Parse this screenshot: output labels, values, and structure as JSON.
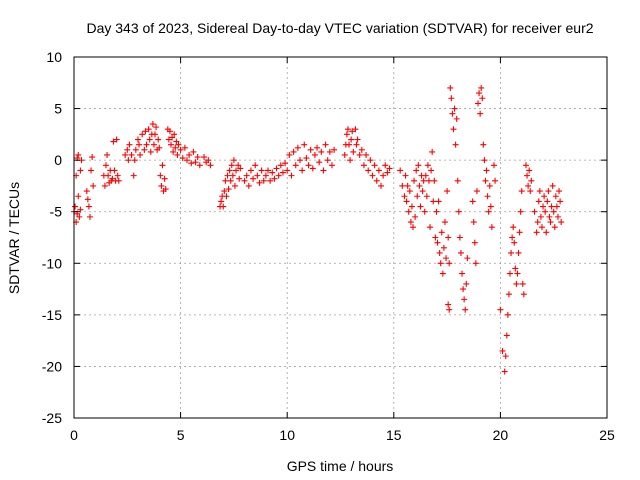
{
  "chart_data": {
    "type": "scatter",
    "title": "Day 343 of 2023, Sidereal Day-to-day VTEC variation (SDTVAR) for receiver eur2",
    "xlabel": "GPS time / hours",
    "ylabel": "SDTVAR / TECUs",
    "xlim": [
      0,
      25
    ],
    "ylim": [
      -25,
      10
    ],
    "xticks": [
      0,
      5,
      10,
      15,
      20,
      25
    ],
    "yticks": [
      10,
      5,
      0,
      -5,
      -10,
      -15,
      -20,
      -25
    ],
    "xtick_labels": [
      "0",
      "5",
      "10",
      "15",
      "20",
      "25"
    ],
    "ytick_labels": [
      "10",
      "5",
      "0",
      "-5",
      "-10",
      "-15",
      "-20",
      "-25"
    ],
    "grid": true,
    "marker": "+",
    "series": [
      {
        "name": "SDTVAR",
        "color": "#ff0000",
        "points": [
          [
            0.0,
            -5.0
          ],
          [
            0.05,
            -4.5
          ],
          [
            0.1,
            -1.5
          ],
          [
            0.1,
            -6.0
          ],
          [
            0.15,
            0.2
          ],
          [
            0.15,
            -5.2
          ],
          [
            0.2,
            -3.5
          ],
          [
            0.2,
            0.5
          ],
          [
            0.25,
            -5.5
          ],
          [
            0.3,
            -1.0
          ],
          [
            0.3,
            -4.8
          ],
          [
            0.35,
            0.0
          ],
          [
            0.6,
            -3.0
          ],
          [
            0.65,
            -3.8
          ],
          [
            0.7,
            -4.5
          ],
          [
            0.75,
            -5.5
          ],
          [
            0.8,
            -1.0
          ],
          [
            0.85,
            0.3
          ],
          [
            0.9,
            -2.5
          ],
          [
            1.4,
            -1.5
          ],
          [
            1.45,
            -2.5
          ],
          [
            1.5,
            -0.5
          ],
          [
            1.55,
            0.5
          ],
          [
            1.6,
            -1.5
          ],
          [
            1.65,
            -2.2
          ],
          [
            1.7,
            -1.0
          ],
          [
            1.75,
            -2.0
          ],
          [
            1.8,
            -1.8
          ],
          [
            1.85,
            1.8
          ],
          [
            1.9,
            -1.0
          ],
          [
            1.95,
            -2.0
          ],
          [
            2.0,
            2.0
          ],
          [
            2.05,
            -1.5
          ],
          [
            2.1,
            -2.0
          ],
          [
            2.4,
            0.5
          ],
          [
            2.5,
            1.0
          ],
          [
            2.55,
            0.0
          ],
          [
            2.6,
            1.5
          ],
          [
            2.7,
            0.5
          ],
          [
            2.8,
            -1.5
          ],
          [
            2.85,
            0.0
          ],
          [
            2.9,
            1.0
          ],
          [
            3.0,
            2.0
          ],
          [
            3.05,
            1.5
          ],
          [
            3.1,
            0.5
          ],
          [
            3.2,
            2.5
          ],
          [
            3.3,
            1.0
          ],
          [
            3.35,
            2.8
          ],
          [
            3.4,
            1.5
          ],
          [
            3.5,
            3.0
          ],
          [
            3.55,
            2.0
          ],
          [
            3.6,
            0.8
          ],
          [
            3.65,
            2.5
          ],
          [
            3.7,
            3.5
          ],
          [
            3.75,
            1.5
          ],
          [
            3.8,
            2.5
          ],
          [
            3.85,
            3.2
          ],
          [
            3.9,
            1.0
          ],
          [
            3.95,
            2.0
          ],
          [
            4.0,
            1.2
          ],
          [
            4.05,
            -1.5
          ],
          [
            4.1,
            -2.5
          ],
          [
            4.15,
            -0.5
          ],
          [
            4.2,
            -3.0
          ],
          [
            4.25,
            -1.8
          ],
          [
            4.3,
            -2.8
          ],
          [
            4.4,
            3.0
          ],
          [
            4.45,
            2.0
          ],
          [
            4.5,
            2.8
          ],
          [
            4.55,
            1.5
          ],
          [
            4.6,
            2.2
          ],
          [
            4.65,
            0.8
          ],
          [
            4.7,
            2.5
          ],
          [
            4.75,
            1.2
          ],
          [
            4.8,
            1.8
          ],
          [
            4.85,
            0.5
          ],
          [
            4.9,
            1.5
          ],
          [
            5.0,
            1.0
          ],
          [
            5.1,
            0.2
          ],
          [
            5.2,
            1.2
          ],
          [
            5.3,
            0.0
          ],
          [
            5.4,
            0.5
          ],
          [
            5.5,
            -0.3
          ],
          [
            5.6,
            0.8
          ],
          [
            5.7,
            -0.2
          ],
          [
            5.8,
            0.3
          ],
          [
            5.9,
            -0.5
          ],
          [
            6.1,
            0.3
          ],
          [
            6.2,
            -0.2
          ],
          [
            6.3,
            0.0
          ],
          [
            6.4,
            -0.5
          ],
          [
            6.85,
            -4.5
          ],
          [
            6.9,
            -4.0
          ],
          [
            6.95,
            -3.5
          ],
          [
            7.0,
            -4.5
          ],
          [
            7.05,
            -3.0
          ],
          [
            7.1,
            -2.0
          ],
          [
            7.15,
            -3.5
          ],
          [
            7.2,
            -1.5
          ],
          [
            7.25,
            -2.8
          ],
          [
            7.3,
            -1.0
          ],
          [
            7.35,
            -2.0
          ],
          [
            7.4,
            -0.5
          ],
          [
            7.45,
            -1.5
          ],
          [
            7.5,
            0.0
          ],
          [
            7.55,
            -2.5
          ],
          [
            7.6,
            -1.0
          ],
          [
            7.7,
            -0.5
          ],
          [
            7.75,
            -1.8
          ],
          [
            7.8,
            -0.8
          ],
          [
            8.0,
            -2.0
          ],
          [
            8.1,
            -1.5
          ],
          [
            8.2,
            -2.5
          ],
          [
            8.3,
            -1.0
          ],
          [
            8.4,
            -1.8
          ],
          [
            8.5,
            -0.5
          ],
          [
            8.6,
            -1.5
          ],
          [
            8.7,
            -2.2
          ],
          [
            8.8,
            -1.0
          ],
          [
            8.9,
            -2.0
          ],
          [
            9.0,
            -1.5
          ],
          [
            9.1,
            -1.0
          ],
          [
            9.2,
            -2.0
          ],
          [
            9.3,
            -1.2
          ],
          [
            9.4,
            -1.8
          ],
          [
            9.5,
            -0.8
          ],
          [
            9.6,
            -1.5
          ],
          [
            9.7,
            -0.5
          ],
          [
            9.8,
            -1.2
          ],
          [
            9.9,
            -0.3
          ],
          [
            10.0,
            -1.0
          ],
          [
            10.1,
            0.5
          ],
          [
            10.2,
            -1.5
          ],
          [
            10.3,
            0.8
          ],
          [
            10.4,
            -0.5
          ],
          [
            10.5,
            1.2
          ],
          [
            10.6,
            0.0
          ],
          [
            10.7,
            -1.0
          ],
          [
            10.8,
            1.5
          ],
          [
            10.9,
            0.2
          ],
          [
            11.0,
            -0.5
          ],
          [
            11.1,
            1.0
          ],
          [
            11.2,
            -0.8
          ],
          [
            11.3,
            0.5
          ],
          [
            11.4,
            1.2
          ],
          [
            11.5,
            -0.2
          ],
          [
            11.6,
            0.8
          ],
          [
            11.7,
            -1.0
          ],
          [
            11.8,
            1.5
          ],
          [
            11.9,
            0.0
          ],
          [
            12.0,
            0.8
          ],
          [
            12.1,
            -0.5
          ],
          [
            12.2,
            1.0
          ],
          [
            12.7,
            0.5
          ],
          [
            12.75,
            1.5
          ],
          [
            12.8,
            2.5
          ],
          [
            12.85,
            3.0
          ],
          [
            12.9,
            1.5
          ],
          [
            12.95,
            0.0
          ],
          [
            13.0,
            2.0
          ],
          [
            13.05,
            2.8
          ],
          [
            13.1,
            0.8
          ],
          [
            13.2,
            3.0
          ],
          [
            13.25,
            1.5
          ],
          [
            13.3,
            2.0
          ],
          [
            13.4,
            0.5
          ],
          [
            13.5,
            1.0
          ],
          [
            13.6,
            -0.5
          ],
          [
            13.7,
            0.5
          ],
          [
            13.8,
            -1.0
          ],
          [
            13.9,
            0.0
          ],
          [
            14.0,
            -1.5
          ],
          [
            14.1,
            -0.5
          ],
          [
            14.2,
            -2.0
          ],
          [
            14.3,
            -1.0
          ],
          [
            14.4,
            -2.5
          ],
          [
            14.5,
            -1.5
          ],
          [
            14.6,
            -0.5
          ],
          [
            14.7,
            -1.2
          ],
          [
            14.8,
            -0.8
          ],
          [
            15.3,
            -1.0
          ],
          [
            15.4,
            -2.5
          ],
          [
            15.5,
            -3.5
          ],
          [
            15.55,
            -1.5
          ],
          [
            15.6,
            -4.0
          ],
          [
            15.65,
            -2.5
          ],
          [
            15.7,
            -5.0
          ],
          [
            15.75,
            -3.0
          ],
          [
            15.8,
            -6.0
          ],
          [
            15.85,
            -4.5
          ],
          [
            15.9,
            -6.5
          ],
          [
            15.95,
            -2.0
          ],
          [
            16.0,
            -5.5
          ],
          [
            16.05,
            -1.0
          ],
          [
            16.1,
            -3.5
          ],
          [
            16.15,
            -0.5
          ],
          [
            16.2,
            -2.5
          ],
          [
            16.25,
            -4.5
          ],
          [
            16.3,
            -1.5
          ],
          [
            16.35,
            -3.0
          ],
          [
            16.4,
            -2.0
          ],
          [
            16.45,
            -5.0
          ],
          [
            16.5,
            -1.5
          ],
          [
            16.55,
            -3.5
          ],
          [
            16.6,
            -0.5
          ],
          [
            16.65,
            -2.0
          ],
          [
            16.7,
            -6.5
          ],
          [
            16.75,
            -1.0
          ],
          [
            16.8,
            0.8
          ],
          [
            16.85,
            -4.0
          ],
          [
            16.9,
            -2.0
          ],
          [
            16.95,
            -7.5
          ],
          [
            17.0,
            -5.0
          ],
          [
            17.05,
            -8.0
          ],
          [
            17.1,
            -4.0
          ],
          [
            17.15,
            -9.0
          ],
          [
            17.2,
            -10.0
          ],
          [
            17.25,
            -7.0
          ],
          [
            17.3,
            -11.0
          ],
          [
            17.35,
            -8.5
          ],
          [
            17.4,
            -6.0
          ],
          [
            17.45,
            -9.5
          ],
          [
            17.5,
            -3.0
          ],
          [
            17.55,
            -7.5
          ],
          [
            17.6,
            -10.0
          ],
          [
            17.55,
            -14.0
          ],
          [
            17.6,
            -14.5
          ],
          [
            17.65,
            7.0
          ],
          [
            17.7,
            6.0
          ],
          [
            17.75,
            4.5
          ],
          [
            17.8,
            3.0
          ],
          [
            17.85,
            5.0
          ],
          [
            17.9,
            1.5
          ],
          [
            17.95,
            4.0
          ],
          [
            18.0,
            -2.0
          ],
          [
            18.05,
            -5.0
          ],
          [
            18.1,
            -7.5
          ],
          [
            18.15,
            -9.0
          ],
          [
            18.2,
            -11.0
          ],
          [
            18.25,
            -12.5
          ],
          [
            18.3,
            -13.5
          ],
          [
            18.35,
            -14.5
          ],
          [
            18.4,
            -12.0
          ],
          [
            18.45,
            -9.5
          ],
          [
            18.7,
            -4.0
          ],
          [
            18.75,
            -6.0
          ],
          [
            18.8,
            -8.0
          ],
          [
            18.85,
            -10.0
          ],
          [
            18.9,
            -3.0
          ],
          [
            18.95,
            5.5
          ],
          [
            19.0,
            6.5
          ],
          [
            19.05,
            4.5
          ],
          [
            19.1,
            7.0
          ],
          [
            19.15,
            6.0
          ],
          [
            19.2,
            1.5
          ],
          [
            19.25,
            0.0
          ],
          [
            19.3,
            -2.0
          ],
          [
            19.35,
            -1.0
          ],
          [
            19.4,
            -3.5
          ],
          [
            19.45,
            -5.0
          ],
          [
            19.5,
            -2.5
          ],
          [
            19.55,
            -4.5
          ],
          [
            19.6,
            -6.5
          ],
          [
            19.7,
            -0.5
          ],
          [
            19.75,
            -2.0
          ],
          [
            20.0,
            -14.5
          ],
          [
            20.1,
            -18.5
          ],
          [
            20.2,
            -20.5
          ],
          [
            20.25,
            -19.0
          ],
          [
            20.3,
            -17.0
          ],
          [
            20.35,
            -15.0
          ],
          [
            20.4,
            -13.0
          ],
          [
            20.45,
            -11.0
          ],
          [
            20.5,
            -9.0
          ],
          [
            20.55,
            -7.5
          ],
          [
            20.6,
            -6.5
          ],
          [
            20.65,
            -8.0
          ],
          [
            20.7,
            -10.5
          ],
          [
            20.75,
            -12.0
          ],
          [
            20.8,
            -11.0
          ],
          [
            20.85,
            -9.0
          ],
          [
            20.9,
            -7.0
          ],
          [
            20.95,
            -5.0
          ],
          [
            21.0,
            -3.0
          ],
          [
            21.05,
            -12.0
          ],
          [
            21.1,
            -13.0
          ],
          [
            21.2,
            -0.5
          ],
          [
            21.25,
            -1.5
          ],
          [
            21.3,
            -2.5
          ],
          [
            21.35,
            -1.0
          ],
          [
            21.4,
            -3.0
          ],
          [
            21.45,
            -2.0
          ],
          [
            21.6,
            -5.0
          ],
          [
            21.7,
            -7.0
          ],
          [
            21.75,
            -6.0
          ],
          [
            21.8,
            -4.0
          ],
          [
            21.85,
            -3.0
          ],
          [
            21.9,
            -5.5
          ],
          [
            21.95,
            -6.5
          ],
          [
            22.0,
            -4.5
          ],
          [
            22.05,
            -3.5
          ],
          [
            22.1,
            -5.0
          ],
          [
            22.15,
            -7.0
          ],
          [
            22.2,
            -4.0
          ],
          [
            22.25,
            -3.0
          ],
          [
            22.3,
            -5.5
          ],
          [
            22.35,
            -6.0
          ],
          [
            22.4,
            -4.5
          ],
          [
            22.45,
            -2.5
          ],
          [
            22.5,
            -5.0
          ],
          [
            22.55,
            -6.5
          ],
          [
            22.6,
            -3.5
          ],
          [
            22.65,
            -4.5
          ],
          [
            22.7,
            -5.5
          ],
          [
            22.75,
            -3.0
          ],
          [
            22.8,
            -4.0
          ],
          [
            22.85,
            -6.0
          ]
        ]
      }
    ]
  }
}
